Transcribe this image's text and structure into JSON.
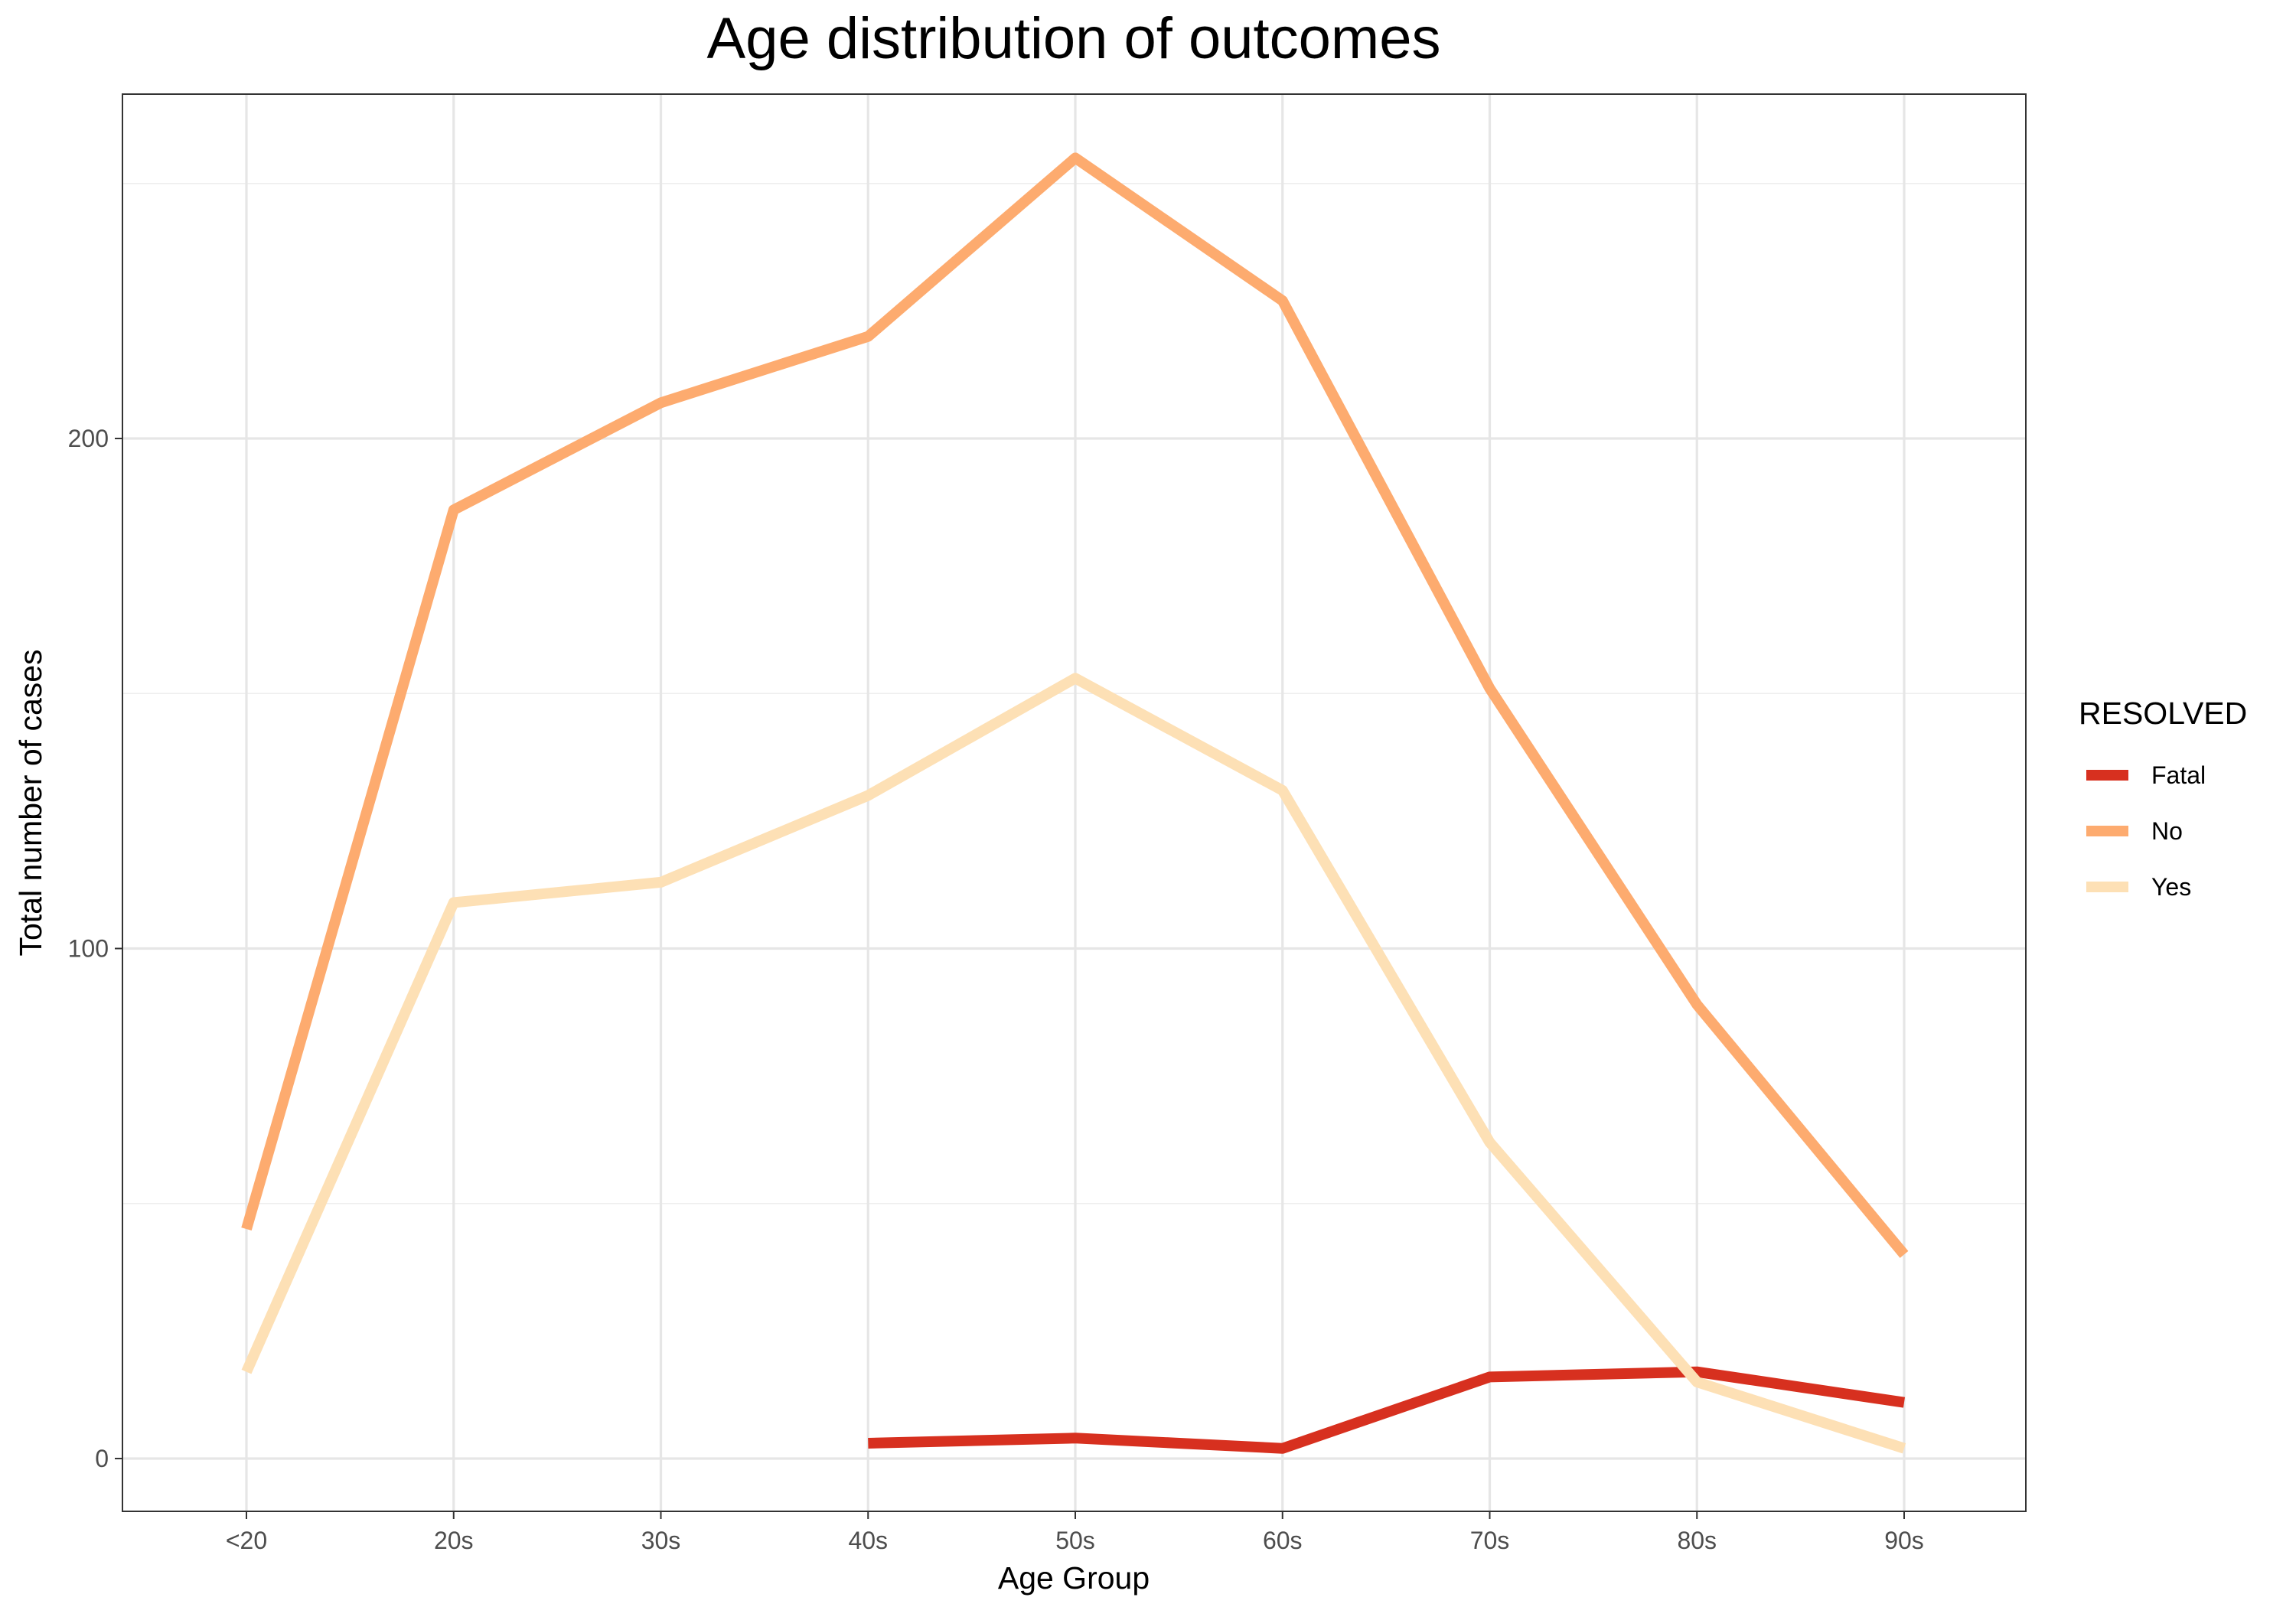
{
  "chart_data": {
    "type": "line",
    "title": "Age distribution of outcomes",
    "xlabel": "Age Group",
    "ylabel": "Total number of cases",
    "categories": [
      "<20",
      "20s",
      "30s",
      "40s",
      "50s",
      "60s",
      "70s",
      "80s",
      "90s"
    ],
    "ylim": [
      -10,
      278
    ],
    "y_ticks": [
      0,
      100,
      200
    ],
    "y_tick_labels": [
      "0",
      "100",
      "200"
    ],
    "grid": true,
    "legend": {
      "title": "RESOLVED",
      "position": "right"
    },
    "series": [
      {
        "name": "Fatal",
        "color": "#d7301f",
        "values": [
          null,
          null,
          null,
          3,
          4,
          2,
          16,
          17,
          11
        ]
      },
      {
        "name": "No",
        "color": "#fdab6f",
        "values": [
          45,
          186,
          207,
          220,
          255,
          227,
          151,
          89,
          40
        ]
      },
      {
        "name": "Yes",
        "color": "#fde0b5",
        "values": [
          17,
          109,
          113,
          130,
          153,
          131,
          62,
          15,
          2
        ]
      }
    ]
  }
}
